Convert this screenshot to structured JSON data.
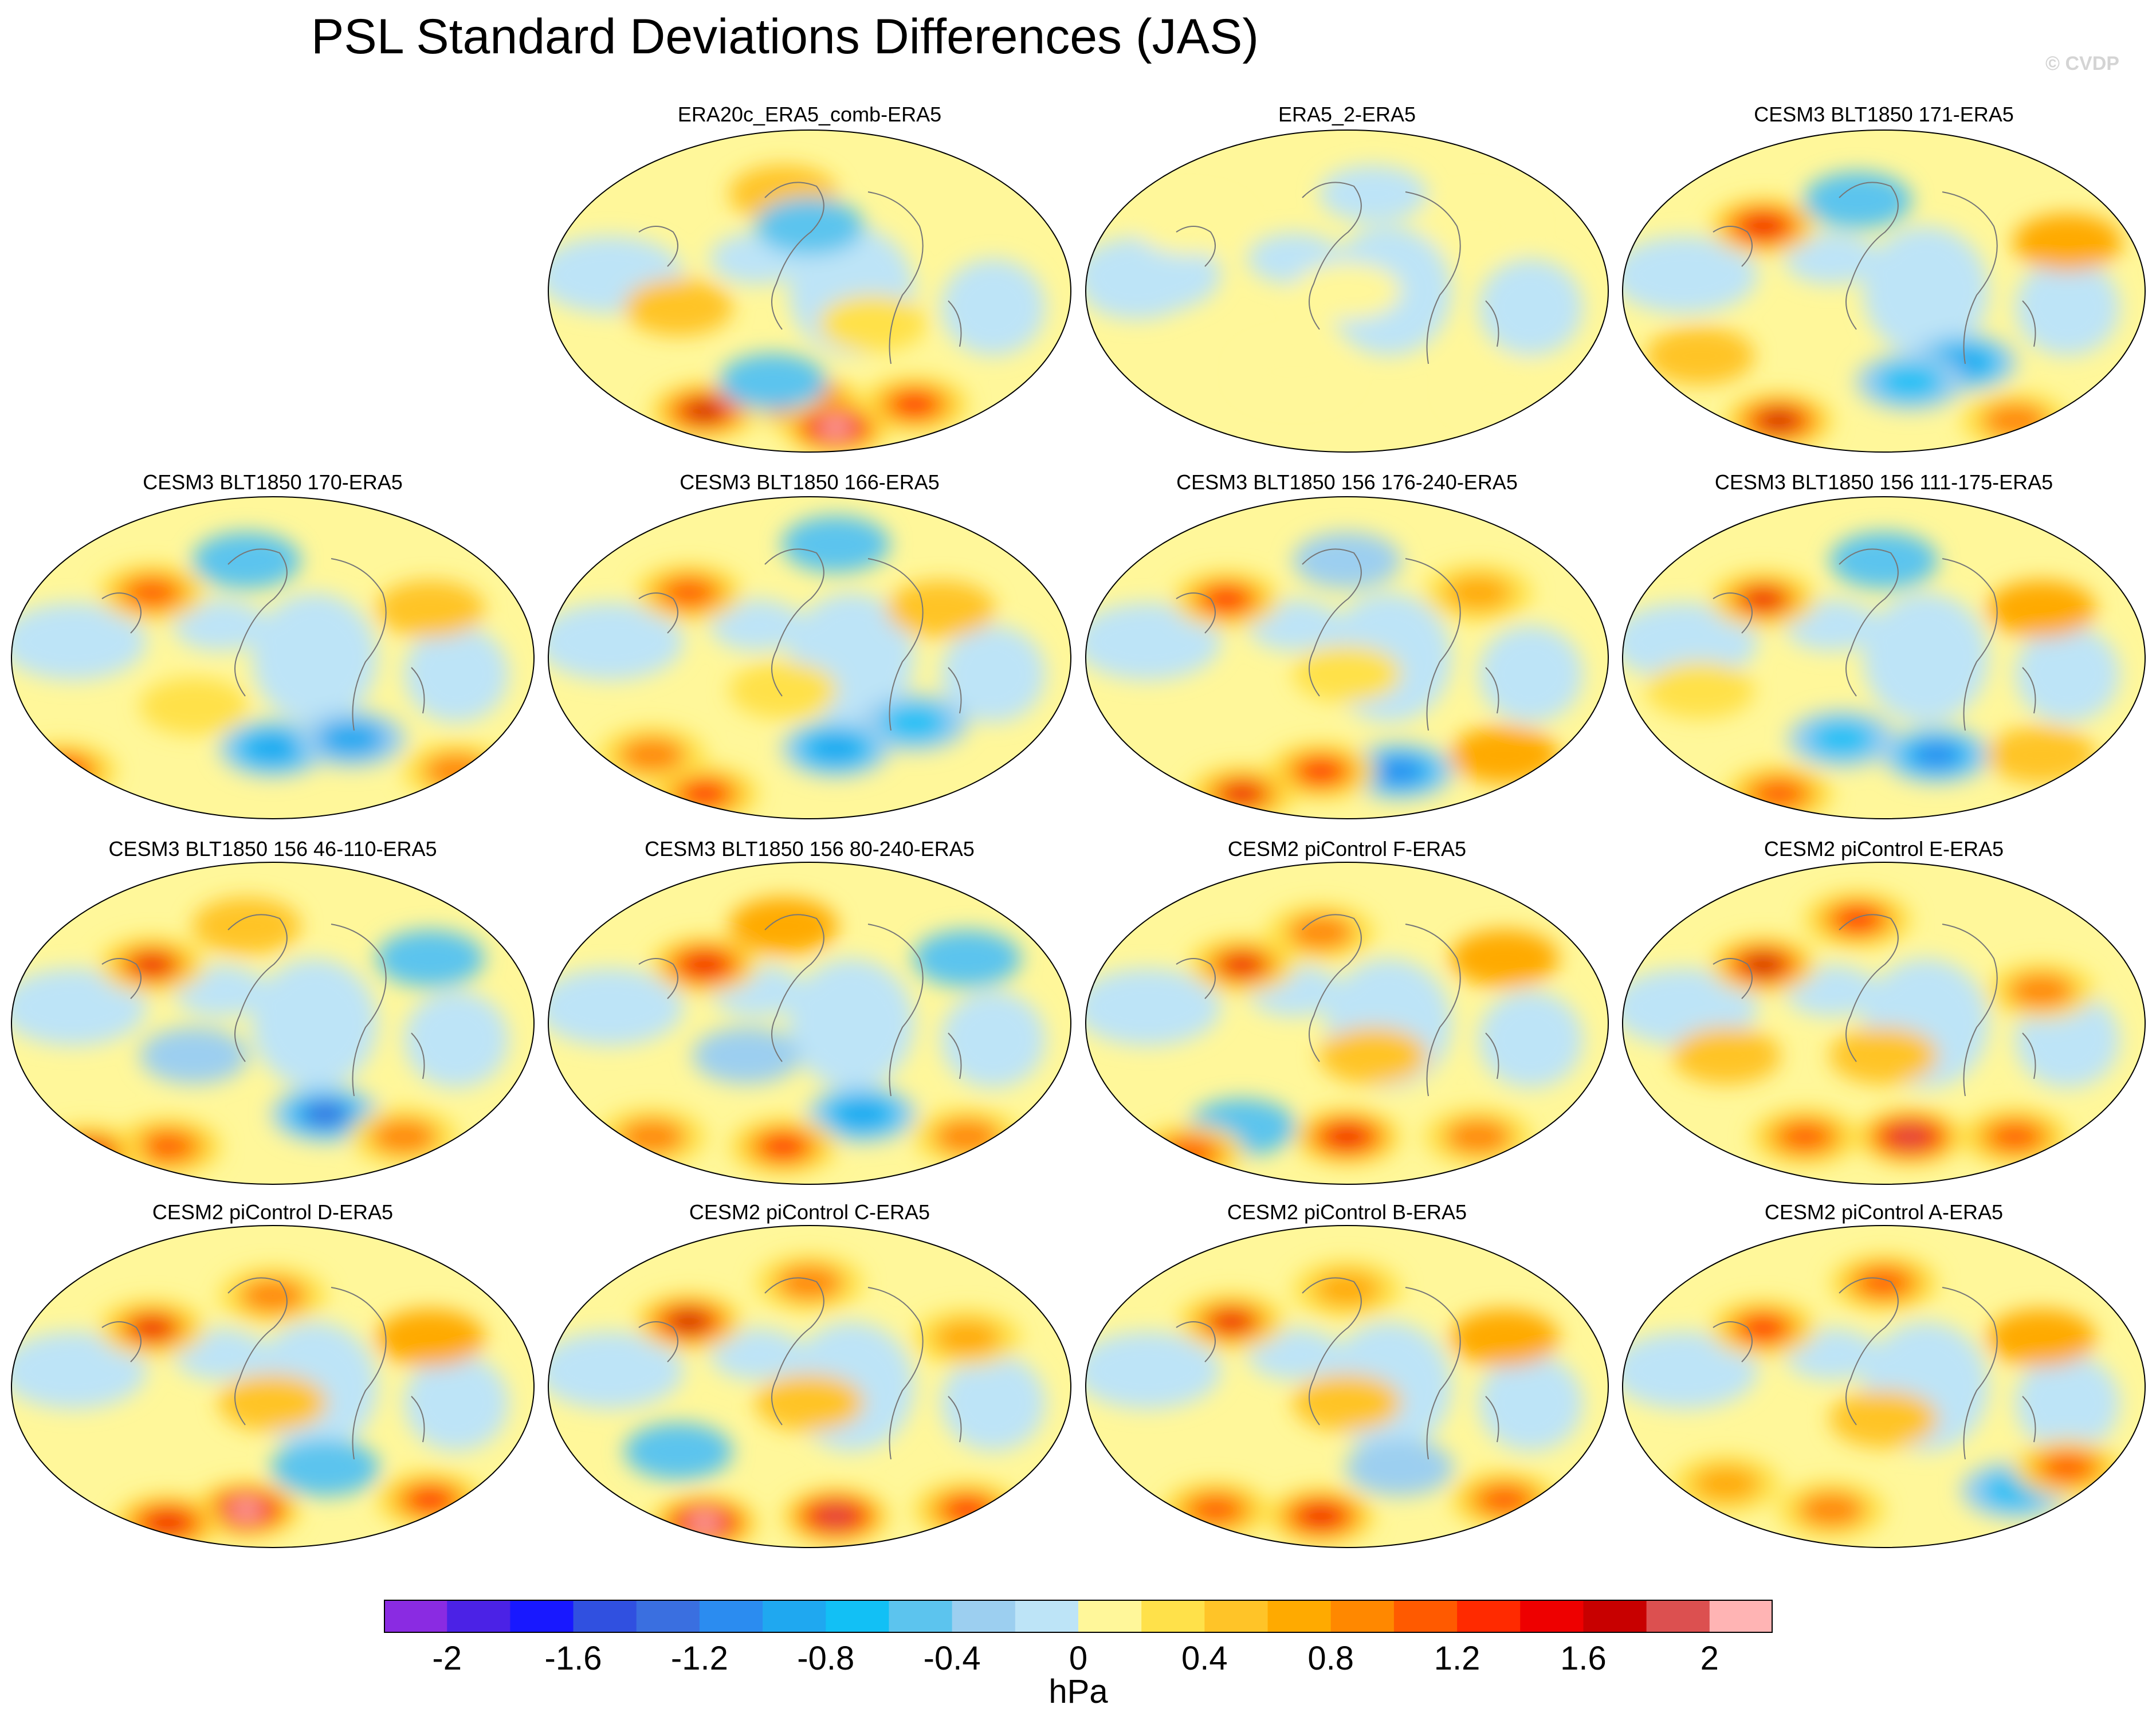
{
  "title": "PSL Standard Deviations Differences (JAS)",
  "credit": "© CVDP",
  "panels": [
    {
      "label": "ERA20c_ERA5_comb-ERA5",
      "spots": [
        [
          0.45,
          0.2,
          0.5
        ],
        [
          0.5,
          0.3,
          -0.6
        ],
        [
          0.5,
          0.85,
          1.9
        ],
        [
          0.55,
          0.92,
          2.1
        ],
        [
          0.3,
          0.87,
          1.6
        ],
        [
          0.7,
          0.85,
          1.2
        ],
        [
          0.43,
          0.78,
          -0.6
        ],
        [
          0.25,
          0.55,
          0.4
        ],
        [
          0.62,
          0.6,
          0.3
        ]
      ]
    },
    {
      "label": "ERA5_2-ERA5",
      "spots": [
        [
          0.2,
          0.3,
          0.1
        ],
        [
          0.5,
          0.5,
          0.1
        ],
        [
          0.4,
          0.75,
          0.1
        ],
        [
          0.75,
          0.3,
          0.1
        ],
        [
          0.8,
          0.8,
          0.15
        ],
        [
          0.1,
          0.5,
          -0.1
        ],
        [
          0.55,
          0.2,
          -0.1
        ]
      ]
    },
    {
      "label": "CESM3 BLT1850 171-ERA5",
      "spots": [
        [
          0.27,
          0.3,
          1.5
        ],
        [
          0.45,
          0.22,
          -0.6
        ],
        [
          0.65,
          0.72,
          -1.0
        ],
        [
          0.55,
          0.78,
          -0.8
        ],
        [
          0.3,
          0.9,
          1.6
        ],
        [
          0.85,
          0.35,
          0.6
        ],
        [
          0.15,
          0.7,
          0.5
        ],
        [
          0.75,
          0.9,
          0.9
        ]
      ]
    },
    {
      "label": "CESM3 BLT1850 170-ERA5",
      "spots": [
        [
          0.27,
          0.3,
          1.0
        ],
        [
          0.45,
          0.2,
          -0.6
        ],
        [
          0.5,
          0.78,
          -1.0
        ],
        [
          0.65,
          0.75,
          -0.9
        ],
        [
          0.1,
          0.85,
          1.2
        ],
        [
          0.85,
          0.85,
          0.9
        ],
        [
          0.8,
          0.35,
          0.5
        ],
        [
          0.35,
          0.65,
          0.3
        ]
      ]
    },
    {
      "label": "CESM3 BLT1850 166-ERA5",
      "spots": [
        [
          0.27,
          0.3,
          1.1
        ],
        [
          0.55,
          0.15,
          -0.5
        ],
        [
          0.55,
          0.78,
          -1.0
        ],
        [
          0.7,
          0.7,
          -0.8
        ],
        [
          0.3,
          0.92,
          1.2
        ],
        [
          0.2,
          0.8,
          0.9
        ],
        [
          0.75,
          0.35,
          0.5
        ],
        [
          0.45,
          0.6,
          0.3
        ]
      ]
    },
    {
      "label": "CESM3 BLT1850 156 176-240-ERA5",
      "spots": [
        [
          0.27,
          0.32,
          1.3
        ],
        [
          0.5,
          0.2,
          -0.4
        ],
        [
          0.6,
          0.85,
          -1.1
        ],
        [
          0.45,
          0.85,
          1.3
        ],
        [
          0.3,
          0.92,
          1.4
        ],
        [
          0.75,
          0.3,
          0.7
        ],
        [
          0.8,
          0.8,
          0.6
        ],
        [
          0.5,
          0.55,
          0.3
        ]
      ]
    },
    {
      "label": "CESM3 BLT1850 156 111-175-ERA5",
      "spots": [
        [
          0.27,
          0.32,
          1.4
        ],
        [
          0.5,
          0.2,
          -0.5
        ],
        [
          0.6,
          0.8,
          -1.2
        ],
        [
          0.42,
          0.75,
          -0.8
        ],
        [
          0.3,
          0.92,
          1.0
        ],
        [
          0.8,
          0.35,
          0.6
        ],
        [
          0.8,
          0.8,
          0.5
        ],
        [
          0.15,
          0.6,
          0.3
        ]
      ]
    },
    {
      "label": "CESM3 BLT1850 156 46-110-ERA5",
      "spots": [
        [
          0.27,
          0.32,
          1.4
        ],
        [
          0.45,
          0.2,
          0.5
        ],
        [
          0.6,
          0.78,
          -1.3
        ],
        [
          0.3,
          0.88,
          1.0
        ],
        [
          0.15,
          0.9,
          1.4
        ],
        [
          0.8,
          0.3,
          -0.5
        ],
        [
          0.75,
          0.85,
          0.8
        ],
        [
          0.35,
          0.6,
          -0.4
        ]
      ]
    },
    {
      "label": "CESM3 BLT1850 156 80-240-ERA5",
      "spots": [
        [
          0.3,
          0.32,
          1.5
        ],
        [
          0.45,
          0.2,
          0.6
        ],
        [
          0.6,
          0.78,
          -1.0
        ],
        [
          0.45,
          0.88,
          1.2
        ],
        [
          0.2,
          0.85,
          0.9
        ],
        [
          0.8,
          0.3,
          -0.5
        ],
        [
          0.8,
          0.85,
          0.8
        ],
        [
          0.38,
          0.6,
          -0.4
        ]
      ]
    },
    {
      "label": "CESM2 piControl F-ERA5",
      "spots": [
        [
          0.3,
          0.32,
          1.4
        ],
        [
          0.45,
          0.22,
          0.8
        ],
        [
          0.5,
          0.85,
          1.5
        ],
        [
          0.3,
          0.82,
          -0.6
        ],
        [
          0.2,
          0.9,
          1.0
        ],
        [
          0.8,
          0.3,
          0.6
        ],
        [
          0.75,
          0.85,
          0.9
        ],
        [
          0.55,
          0.6,
          0.4
        ]
      ]
    },
    {
      "label": "CESM2 piControl E-ERA5",
      "spots": [
        [
          0.27,
          0.32,
          1.6
        ],
        [
          0.45,
          0.18,
          1.2
        ],
        [
          0.55,
          0.85,
          1.9
        ],
        [
          0.35,
          0.85,
          1.0
        ],
        [
          0.8,
          0.4,
          0.8
        ],
        [
          0.75,
          0.85,
          1.1
        ],
        [
          0.5,
          0.6,
          0.5
        ],
        [
          0.2,
          0.6,
          0.4
        ]
      ]
    },
    {
      "label": "CESM2 piControl D-ERA5",
      "spots": [
        [
          0.27,
          0.32,
          1.4
        ],
        [
          0.5,
          0.22,
          0.8
        ],
        [
          0.45,
          0.88,
          2.0
        ],
        [
          0.3,
          0.92,
          1.5
        ],
        [
          0.6,
          0.75,
          -0.6
        ],
        [
          0.8,
          0.35,
          0.6
        ],
        [
          0.8,
          0.85,
          1.2
        ],
        [
          0.5,
          0.55,
          0.4
        ]
      ]
    },
    {
      "label": "CESM2 piControl C-ERA5",
      "spots": [
        [
          0.27,
          0.3,
          1.6
        ],
        [
          0.5,
          0.18,
          0.9
        ],
        [
          0.3,
          0.92,
          2.1
        ],
        [
          0.55,
          0.9,
          1.8
        ],
        [
          0.25,
          0.7,
          -0.6
        ],
        [
          0.8,
          0.35,
          0.7
        ],
        [
          0.8,
          0.88,
          1.3
        ],
        [
          0.5,
          0.55,
          0.5
        ]
      ]
    },
    {
      "label": "CESM2 piControl B-ERA5",
      "spots": [
        [
          0.28,
          0.3,
          1.4
        ],
        [
          0.5,
          0.2,
          0.7
        ],
        [
          0.45,
          0.9,
          1.5
        ],
        [
          0.25,
          0.88,
          1.0
        ],
        [
          0.6,
          0.75,
          -0.4
        ],
        [
          0.8,
          0.35,
          0.6
        ],
        [
          0.8,
          0.85,
          1.0
        ],
        [
          0.5,
          0.55,
          0.4
        ]
      ]
    },
    {
      "label": "CESM2 piControl A-ERA5",
      "spots": [
        [
          0.27,
          0.32,
          1.2
        ],
        [
          0.5,
          0.18,
          1.0
        ],
        [
          0.4,
          0.88,
          0.8
        ],
        [
          0.75,
          0.82,
          -0.8
        ],
        [
          0.85,
          0.75,
          1.0
        ],
        [
          0.2,
          0.8,
          0.7
        ],
        [
          0.8,
          0.35,
          0.6
        ],
        [
          0.5,
          0.6,
          0.4
        ]
      ]
    }
  ],
  "colorbar": {
    "units": "hPa",
    "labels": [
      "-2",
      "-1.6",
      "-1.2",
      "-0.8",
      "-0.4",
      "0",
      "0.4",
      "0.8",
      "1.2",
      "1.6",
      "2"
    ],
    "colors": [
      "#8a2be2",
      "#4b22e6",
      "#1818ff",
      "#3050e0",
      "#3a6fe0",
      "#2b8cf0",
      "#1fa8f0",
      "#12c0f5",
      "#5cc4ee",
      "#9ccff0",
      "#bde4f7",
      "#fff79a",
      "#ffe14a",
      "#ffc428",
      "#ffaa00",
      "#ff8800",
      "#ff5a00",
      "#ff2a00",
      "#ee0000",
      "#c80000",
      "#dc5050",
      "#ffb4b4"
    ]
  }
}
